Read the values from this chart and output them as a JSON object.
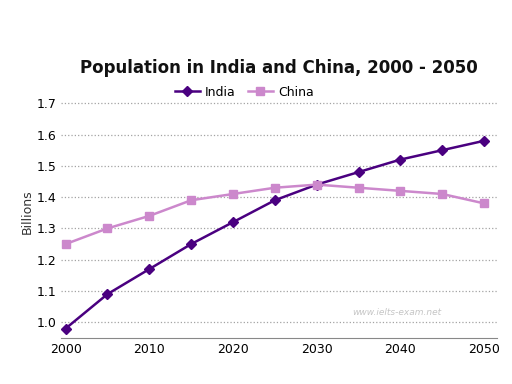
{
  "title": "Population in India and China, 2000 - 2050",
  "ylabel": "Billions",
  "india_x": [
    2000,
    2005,
    2010,
    2015,
    2020,
    2025,
    2030,
    2035,
    2040,
    2045,
    2050
  ],
  "india_y": [
    0.98,
    1.09,
    1.17,
    1.25,
    1.32,
    1.39,
    1.44,
    1.48,
    1.52,
    1.55,
    1.58
  ],
  "china_x": [
    2000,
    2005,
    2010,
    2015,
    2020,
    2025,
    2030,
    2035,
    2040,
    2045,
    2050
  ],
  "china_y": [
    1.25,
    1.3,
    1.34,
    1.39,
    1.41,
    1.43,
    1.44,
    1.43,
    1.42,
    1.41,
    1.38
  ],
  "india_color": "#4a0080",
  "china_color": "#cc88cc",
  "india_label": "India",
  "china_label": "China",
  "ylim_bottom": 0.95,
  "ylim_top": 1.76,
  "yticks": [
    1.0,
    1.1,
    1.2,
    1.3,
    1.4,
    1.5,
    1.6,
    1.7
  ],
  "xticks": [
    2000,
    2010,
    2020,
    2030,
    2040,
    2050
  ],
  "grid_color": "#999999",
  "watermark": "www.ielts-exam.net",
  "background_color": "#ffffff"
}
